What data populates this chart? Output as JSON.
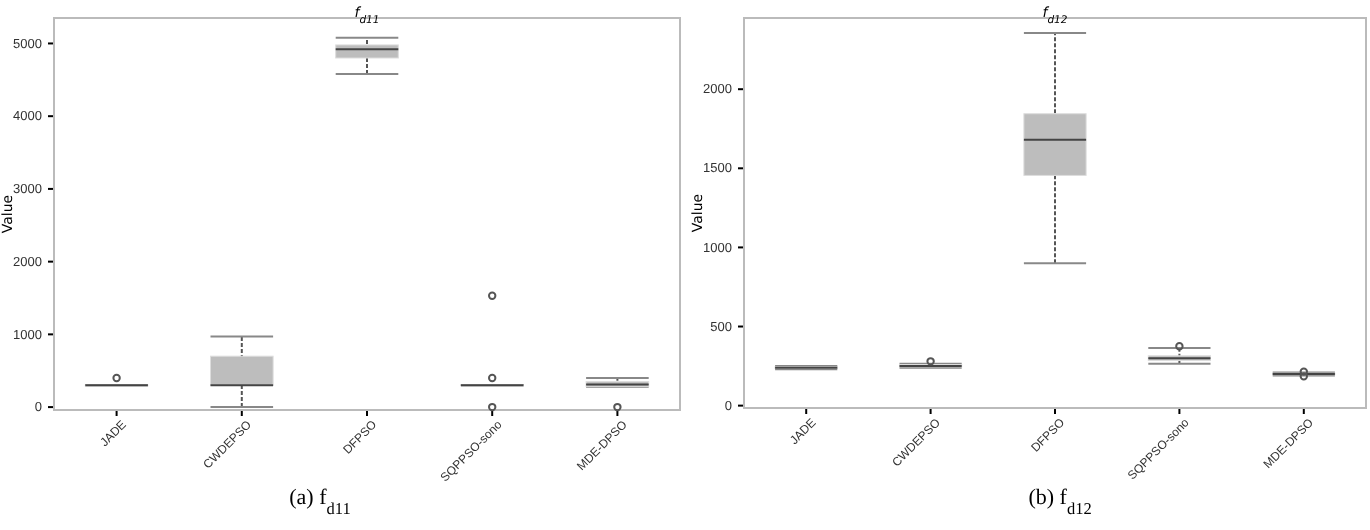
{
  "chart_data": [
    {
      "type": "box",
      "title": "f$_{d11}$",
      "ylabel": "Value",
      "categories": [
        "JADE",
        "CWDEPSO",
        "DFPSO",
        "SQPPSO-sono",
        "MDE-DPSO"
      ],
      "boxes": [
        {
          "low": 300,
          "q1": 300,
          "median": 300,
          "q3": 305,
          "high": 305,
          "outliers": [
            400
          ]
        },
        {
          "low": 0,
          "q1": 300,
          "median": 300,
          "q3": 700,
          "high": 970
        },
        {
          "low": 4580,
          "q1": 4800,
          "median": 4920,
          "q3": 4980,
          "high": 5080
        },
        {
          "low": 300,
          "q1": 300,
          "median": 300,
          "q3": 305,
          "high": 305,
          "outliers": [
            1530,
            400,
            0
          ]
        },
        {
          "low": 280,
          "q1": 285,
          "median": 310,
          "q3": 350,
          "high": 400,
          "outliers": [
            0
          ]
        }
      ],
      "ylim": [
        -40,
        5350
      ],
      "yticks": [
        0,
        1000,
        2000,
        3000,
        4000,
        5000
      ],
      "annotations": [
        "(a) f$_{d11}$"
      ]
    },
    {
      "type": "box",
      "title": "f$_{d12}$",
      "ylabel": "Value",
      "categories": [
        "JADE",
        "CWDEPSO",
        "DFPSO",
        "SQPPSO-sono",
        "MDE-DPSO"
      ],
      "boxes": [
        {
          "low": 230,
          "q1": 235,
          "median": 240,
          "q3": 245,
          "high": 250
        },
        {
          "low": 240,
          "q1": 245,
          "median": 250,
          "q3": 260,
          "high": 265,
          "outliers": [
            280
          ]
        },
        {
          "low": 900,
          "q1": 1455,
          "median": 1680,
          "q3": 1845,
          "high": 2355
        },
        {
          "low": 265,
          "q1": 285,
          "median": 300,
          "q3": 315,
          "high": 365,
          "outliers": [
            375
          ]
        },
        {
          "low": 190,
          "q1": 195,
          "median": 200,
          "q3": 205,
          "high": 210,
          "outliers": [
            215,
            185
          ]
        }
      ],
      "ylim": [
        -15,
        2450
      ],
      "yticks": [
        0,
        500,
        1000,
        1500,
        2000
      ],
      "annotations": [
        "(b) f$_{d12}$"
      ]
    }
  ]
}
